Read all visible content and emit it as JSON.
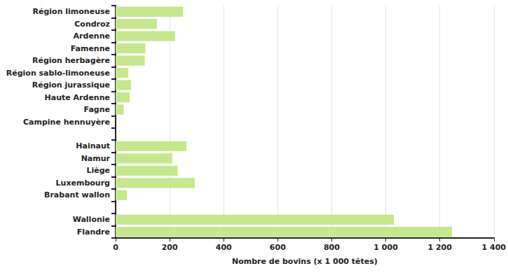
{
  "chart_data": {
    "type": "bar",
    "orientation": "horizontal",
    "xlabel": "Nombre de bovins (x 1 000 têtes)",
    "categories": [
      "Région limoneuse",
      "Condroz",
      "Ardenne",
      "Famenne",
      "Région herbagère",
      "Région sablo-limoneuse",
      "Région jurassique",
      "Haute Ardenne",
      "Fagne",
      "Campine hennuyère",
      null,
      "Hainaut",
      "Namur",
      "Liège",
      "Luxembourg",
      "Brabant wallon",
      null,
      "Wallonie",
      "Flandre"
    ],
    "values": [
      250,
      153,
      220,
      110,
      108,
      47,
      57,
      52,
      30,
      0,
      null,
      262,
      210,
      230,
      293,
      42,
      null,
      1030,
      1245
    ],
    "color": "#c5e88f",
    "xlim": [
      0,
      1400
    ],
    "xticks": [
      0,
      200,
      400,
      600,
      800,
      {
        "value": 1000,
        "label": "1 000"
      },
      {
        "value": 1200,
        "label": "1 200"
      },
      {
        "value": 1400,
        "label": "1 400"
      }
    ],
    "grid": true
  }
}
